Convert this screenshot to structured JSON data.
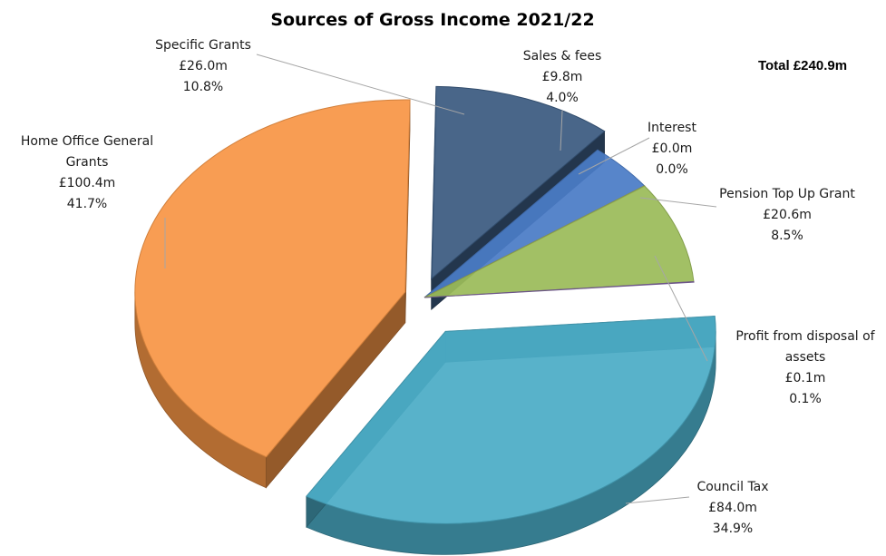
{
  "chart_data": {
    "type": "pie",
    "title": "Sources of Gross Income 2021/22",
    "total_label": "Total £240.9m",
    "slices": [
      {
        "name": "Specific Grants",
        "lines": [
          "Specific Grants"
        ],
        "amount": "£26.0m",
        "percent": "10.8%",
        "value": 26.0,
        "color": "#3b5a80"
      },
      {
        "name": "Sales & fees",
        "lines": [
          "Sales & fees"
        ],
        "amount": "£9.8m",
        "percent": "4.0%",
        "value": 9.8,
        "color": "#4a7cc6"
      },
      {
        "name": "Interest",
        "lines": [
          "Interest"
        ],
        "amount": "£0.0m",
        "percent": "0.0%",
        "value": 0.0,
        "color": "#c0504d"
      },
      {
        "name": "Pension Top Up Grant",
        "lines": [
          "Pension Top Up Grant"
        ],
        "amount": "£20.6m",
        "percent": "8.5%",
        "value": 20.6,
        "color": "#9bbb59"
      },
      {
        "name": "Profit from disposal of assets",
        "lines": [
          "Profit from disposal of",
          "assets"
        ],
        "amount": "£0.1m",
        "percent": "0.1%",
        "value": 0.1,
        "color": "#8064a2"
      },
      {
        "name": "Council Tax",
        "lines": [
          "Council Tax"
        ],
        "amount": "£84.0m",
        "percent": "34.9%",
        "value": 84.0,
        "color": "#4bacc6"
      },
      {
        "name": "Home Office General Grants",
        "lines": [
          "Home Office General",
          "Grants"
        ],
        "amount": "£100.4m",
        "percent": "41.7%",
        "value": 100.4,
        "color": "#f79646"
      }
    ]
  }
}
